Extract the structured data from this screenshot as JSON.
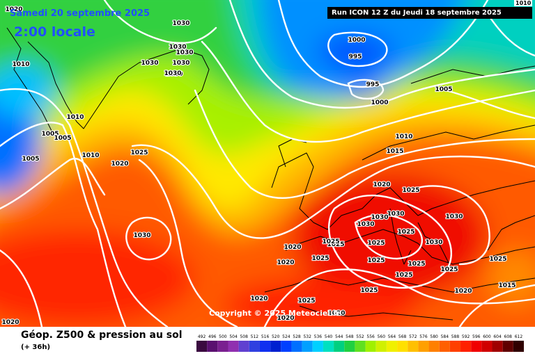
{
  "header": {
    "date": "Samedi 20 septembre 2025",
    "local_time": "2:00 locale",
    "run_info": "Run ICON 12 Z du Jeudi 18 septembre 2025",
    "corner_label": "1010"
  },
  "footer": {
    "title": "Géop. Z500 & pression au sol",
    "subtitle": "(+ 36h)",
    "copyright": "Copyright © 2025 Meteociel.fr"
  },
  "scale": {
    "values": [
      "492",
      "496",
      "500",
      "504",
      "508",
      "512",
      "516",
      "520",
      "524",
      "528",
      "532",
      "536",
      "540",
      "544",
      "548",
      "552",
      "556",
      "560",
      "564",
      "568",
      "572",
      "576",
      "580",
      "584",
      "588",
      "592",
      "596",
      "600",
      "604",
      "608",
      "612"
    ],
    "colors": [
      "#3a0a40",
      "#5a1070",
      "#7a2090",
      "#9030b0",
      "#6040d0",
      "#3040e0",
      "#1030f0",
      "#0020d0",
      "#0040ff",
      "#0070ff",
      "#00a0ff",
      "#00d0ff",
      "#00e0c0",
      "#00d080",
      "#20d040",
      "#60e020",
      "#a0f000",
      "#d0f000",
      "#f0f000",
      "#ffe000",
      "#ffc000",
      "#ffa000",
      "#ff8000",
      "#ff6000",
      "#ff4000",
      "#ff2000",
      "#f00000",
      "#d00000",
      "#a00000",
      "#600000",
      "#300000"
    ]
  },
  "pressure_labels": [
    {
      "text": "1030"
    },
    {
      "text": "1030"
    },
    {
      "text": "1030"
    },
    {
      "text": "1030"
    },
    {
      "text": "1030"
    },
    {
      "text": "1030"
    },
    {
      "text": "1010"
    },
    {
      "text": "1020"
    },
    {
      "text": "1000"
    },
    {
      "text": "995"
    },
    {
      "text": "995"
    },
    {
      "text": "1000"
    },
    {
      "text": "1005"
    },
    {
      "text": "1010"
    },
    {
      "text": "1005"
    },
    {
      "text": "1005"
    },
    {
      "text": "1010"
    },
    {
      "text": "1025"
    },
    {
      "text": "1020"
    },
    {
      "text": "1005"
    },
    {
      "text": "1015"
    },
    {
      "text": "1010"
    },
    {
      "text": "1020"
    },
    {
      "text": "1025"
    },
    {
      "text": "1030"
    },
    {
      "text": "1030"
    },
    {
      "text": "1030"
    },
    {
      "text": "1030"
    },
    {
      "text": "1025"
    },
    {
      "text": "1025"
    },
    {
      "text": "1030"
    },
    {
      "text": "1025"
    },
    {
      "text": "1020"
    },
    {
      "text": "1025"
    },
    {
      "text": "1020"
    },
    {
      "text": "1025"
    },
    {
      "text": "1025"
    },
    {
      "text": "1025"
    },
    {
      "text": "1025"
    },
    {
      "text": "1025"
    },
    {
      "text": "1025"
    },
    {
      "text": "1030"
    },
    {
      "text": "1020"
    },
    {
      "text": "1015"
    },
    {
      "text": "1020"
    },
    {
      "text": "1025"
    },
    {
      "text": "1020"
    },
    {
      "text": "1025"
    },
    {
      "text": "1020"
    },
    {
      "text": "1020"
    },
    {
      "text": "1030"
    }
  ]
}
